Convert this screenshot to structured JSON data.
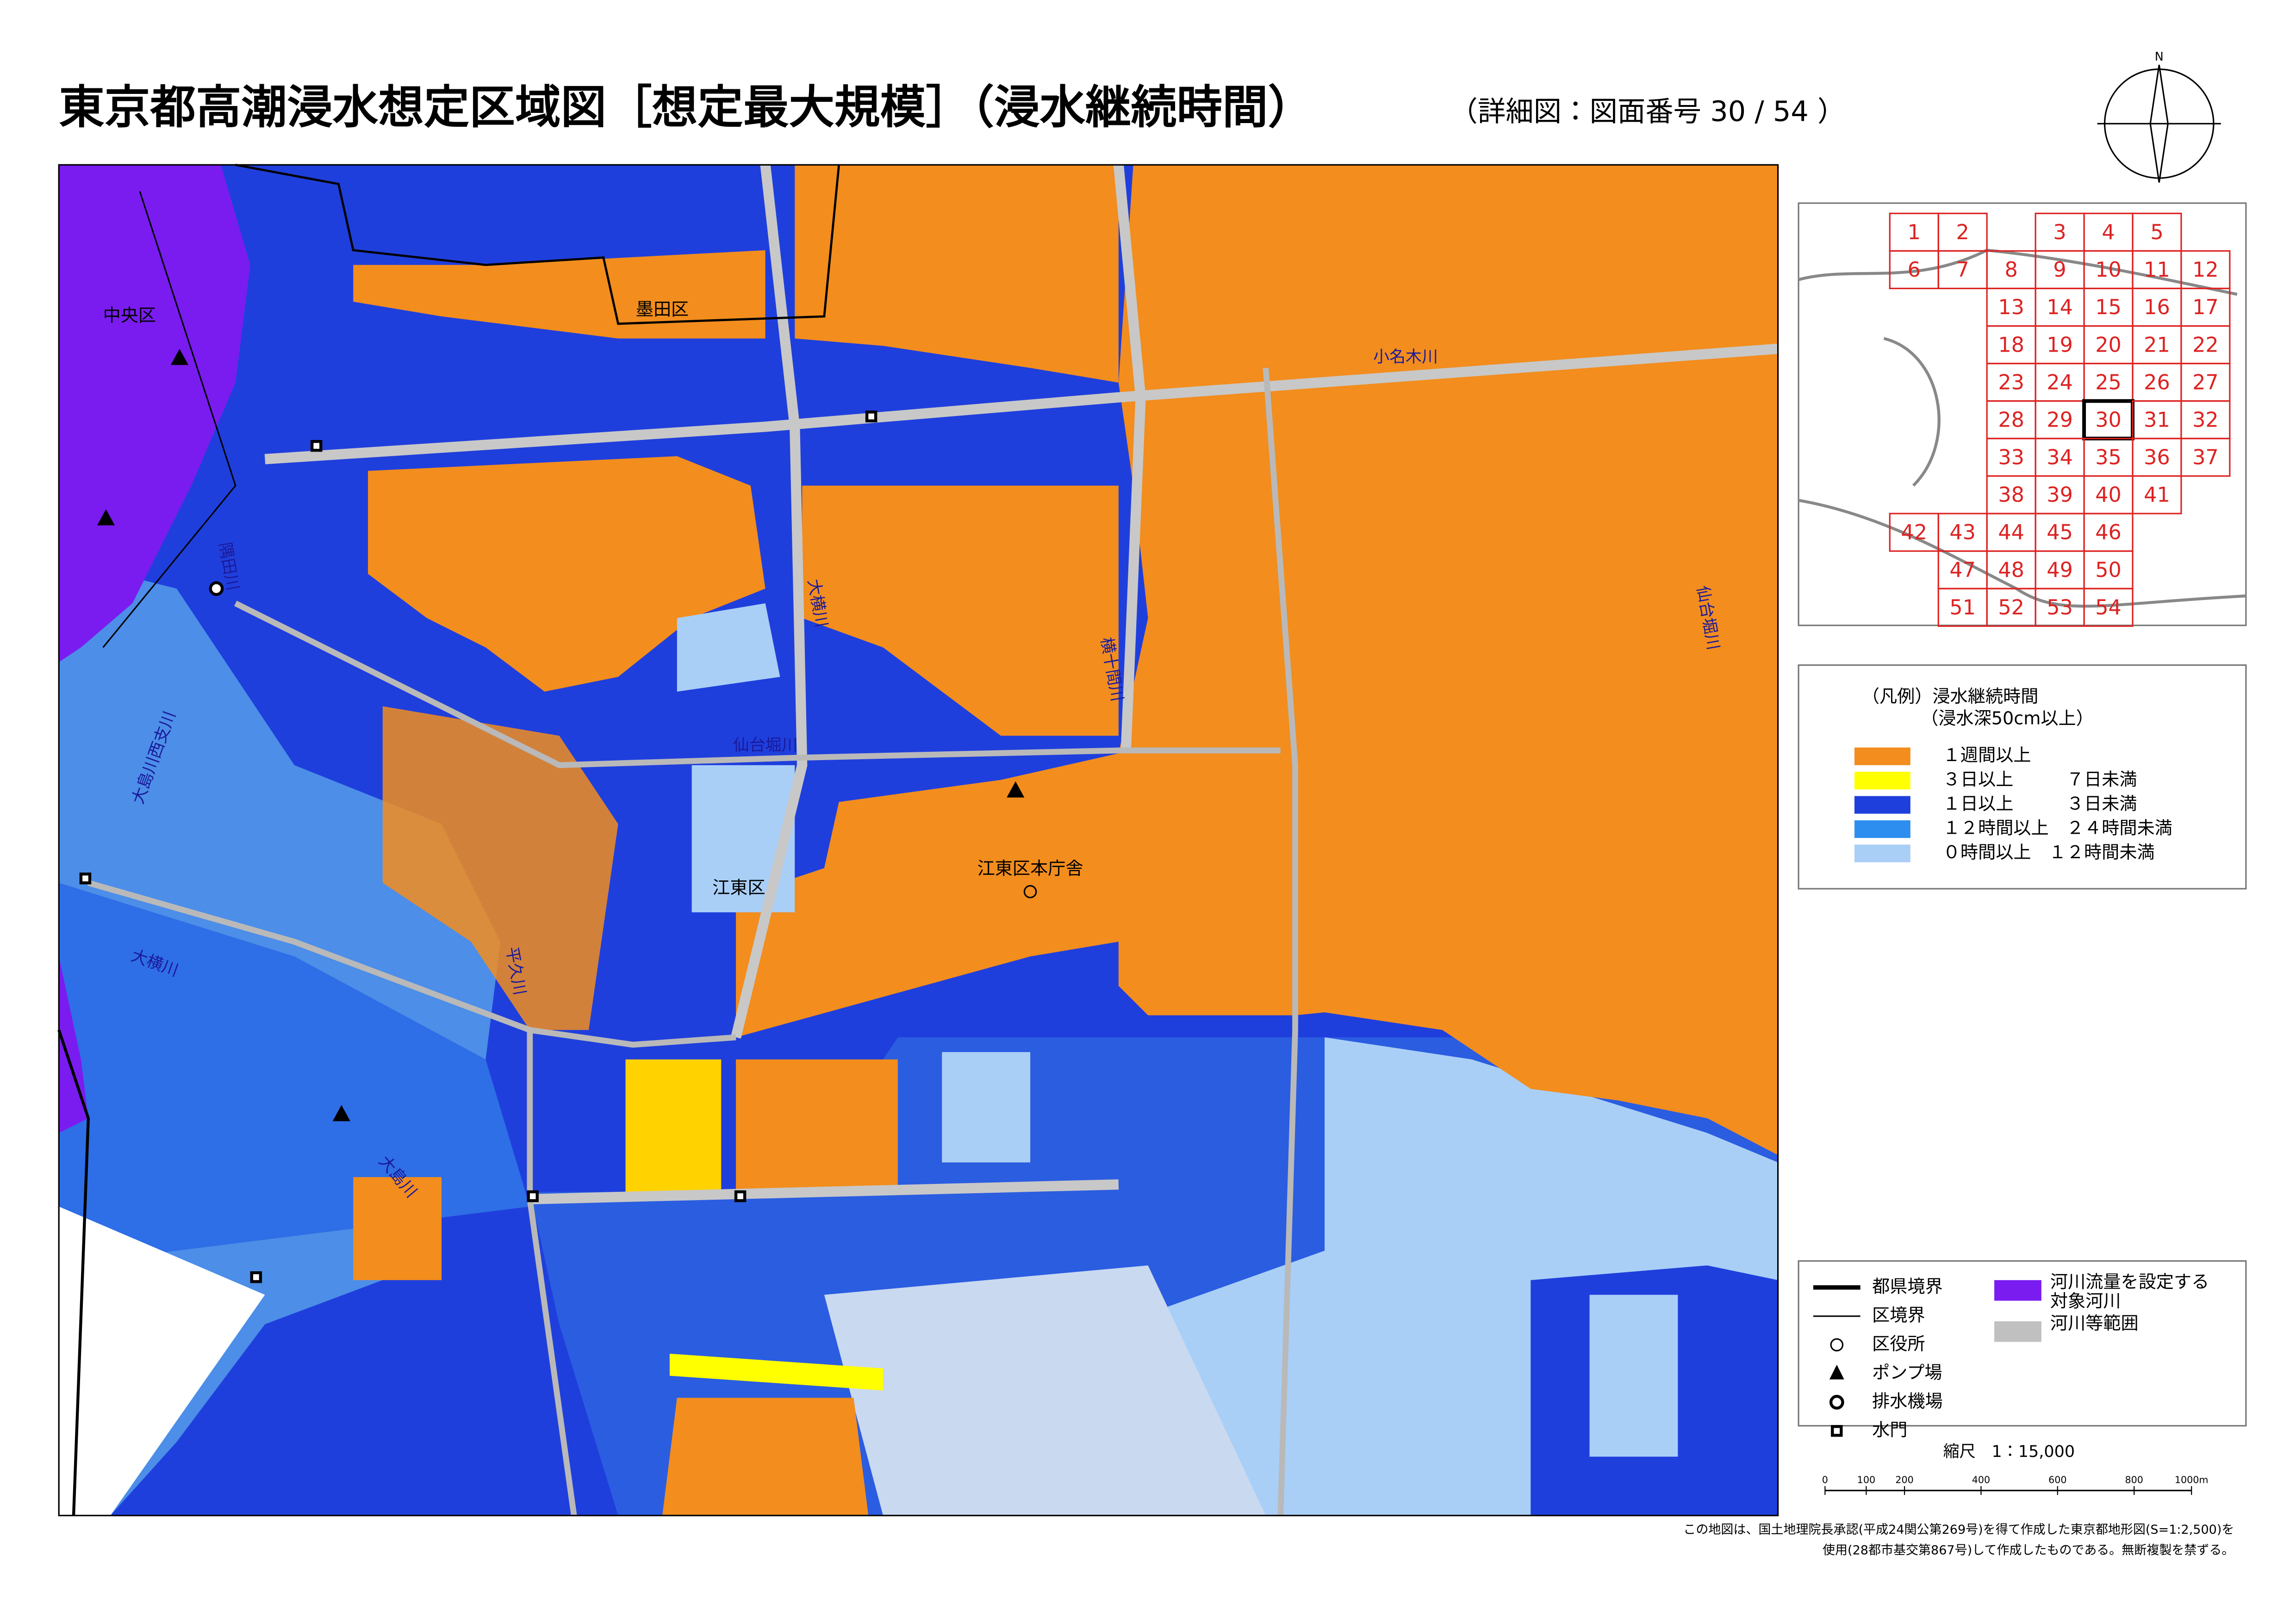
{
  "title": "東京都高潮浸水想定区域図［想定最大規模］（浸水継続時間）",
  "subtitle": "（詳細図：図面番号 30 / 54 ）",
  "north": "N",
  "map_labels": [
    "中央区",
    "墨田区",
    "江東区",
    "江東区本庁舎",
    "小名木川",
    "隅田川",
    "大横川",
    "大島川西支川",
    "仙台堀川",
    "横十間川",
    "平久川",
    "大横川",
    "仙台堀川",
    "大島川"
  ],
  "index_map": {
    "sheets": [
      "1",
      "2",
      "3",
      "4",
      "5",
      "6",
      "7",
      "8",
      "9",
      "10",
      "11",
      "12",
      "13",
      "14",
      "15",
      "16",
      "17",
      "18",
      "19",
      "20",
      "21",
      "22",
      "23",
      "24",
      "25",
      "26",
      "27",
      "28",
      "29",
      "30",
      "31",
      "32",
      "33",
      "34",
      "35",
      "36",
      "37",
      "38",
      "39",
      "40",
      "41",
      "42",
      "43",
      "44",
      "45",
      "46",
      "47",
      "48",
      "49",
      "50",
      "51",
      "52",
      "53",
      "54"
    ],
    "current": "30"
  },
  "legend": {
    "title": "（凡例）浸水継続時間",
    "subtitle": "（浸水深50cm以上）",
    "items": [
      {
        "label": "１週間以上",
        "color": "#f28d1e"
      },
      {
        "label": "３日以上　　　７日未満",
        "color": "#ffff00"
      },
      {
        "label": "１日以上　　　３日未満",
        "color": "#1f3fdc"
      },
      {
        "label": "１２時間以上　２４時間未満",
        "color": "#2e8ef0"
      },
      {
        "label": "０時間以上　１２時間未満",
        "color": "#a9cff7"
      }
    ]
  },
  "symbols": {
    "lines": [
      "都県境界",
      "区境界",
      "区役所",
      "ポンプ場",
      "排水機場",
      "水門"
    ],
    "areas": [
      [
        "河川流量を設定する",
        "対象河川"
      ],
      [
        "河川等範囲"
      ]
    ]
  },
  "scale": {
    "label": "縮尺　1：15,000",
    "ticks": [
      "0",
      "100",
      "200",
      "400",
      "600",
      "800",
      "1000m"
    ]
  },
  "footnote": [
    "この地図は、国土地理院長承認(平成24関公第269号)を得て作成した東京都地形図(S=1:2,500)を",
    "使用(28都市基交第867号)して作成したものである。無断複製を禁ずる。"
  ]
}
